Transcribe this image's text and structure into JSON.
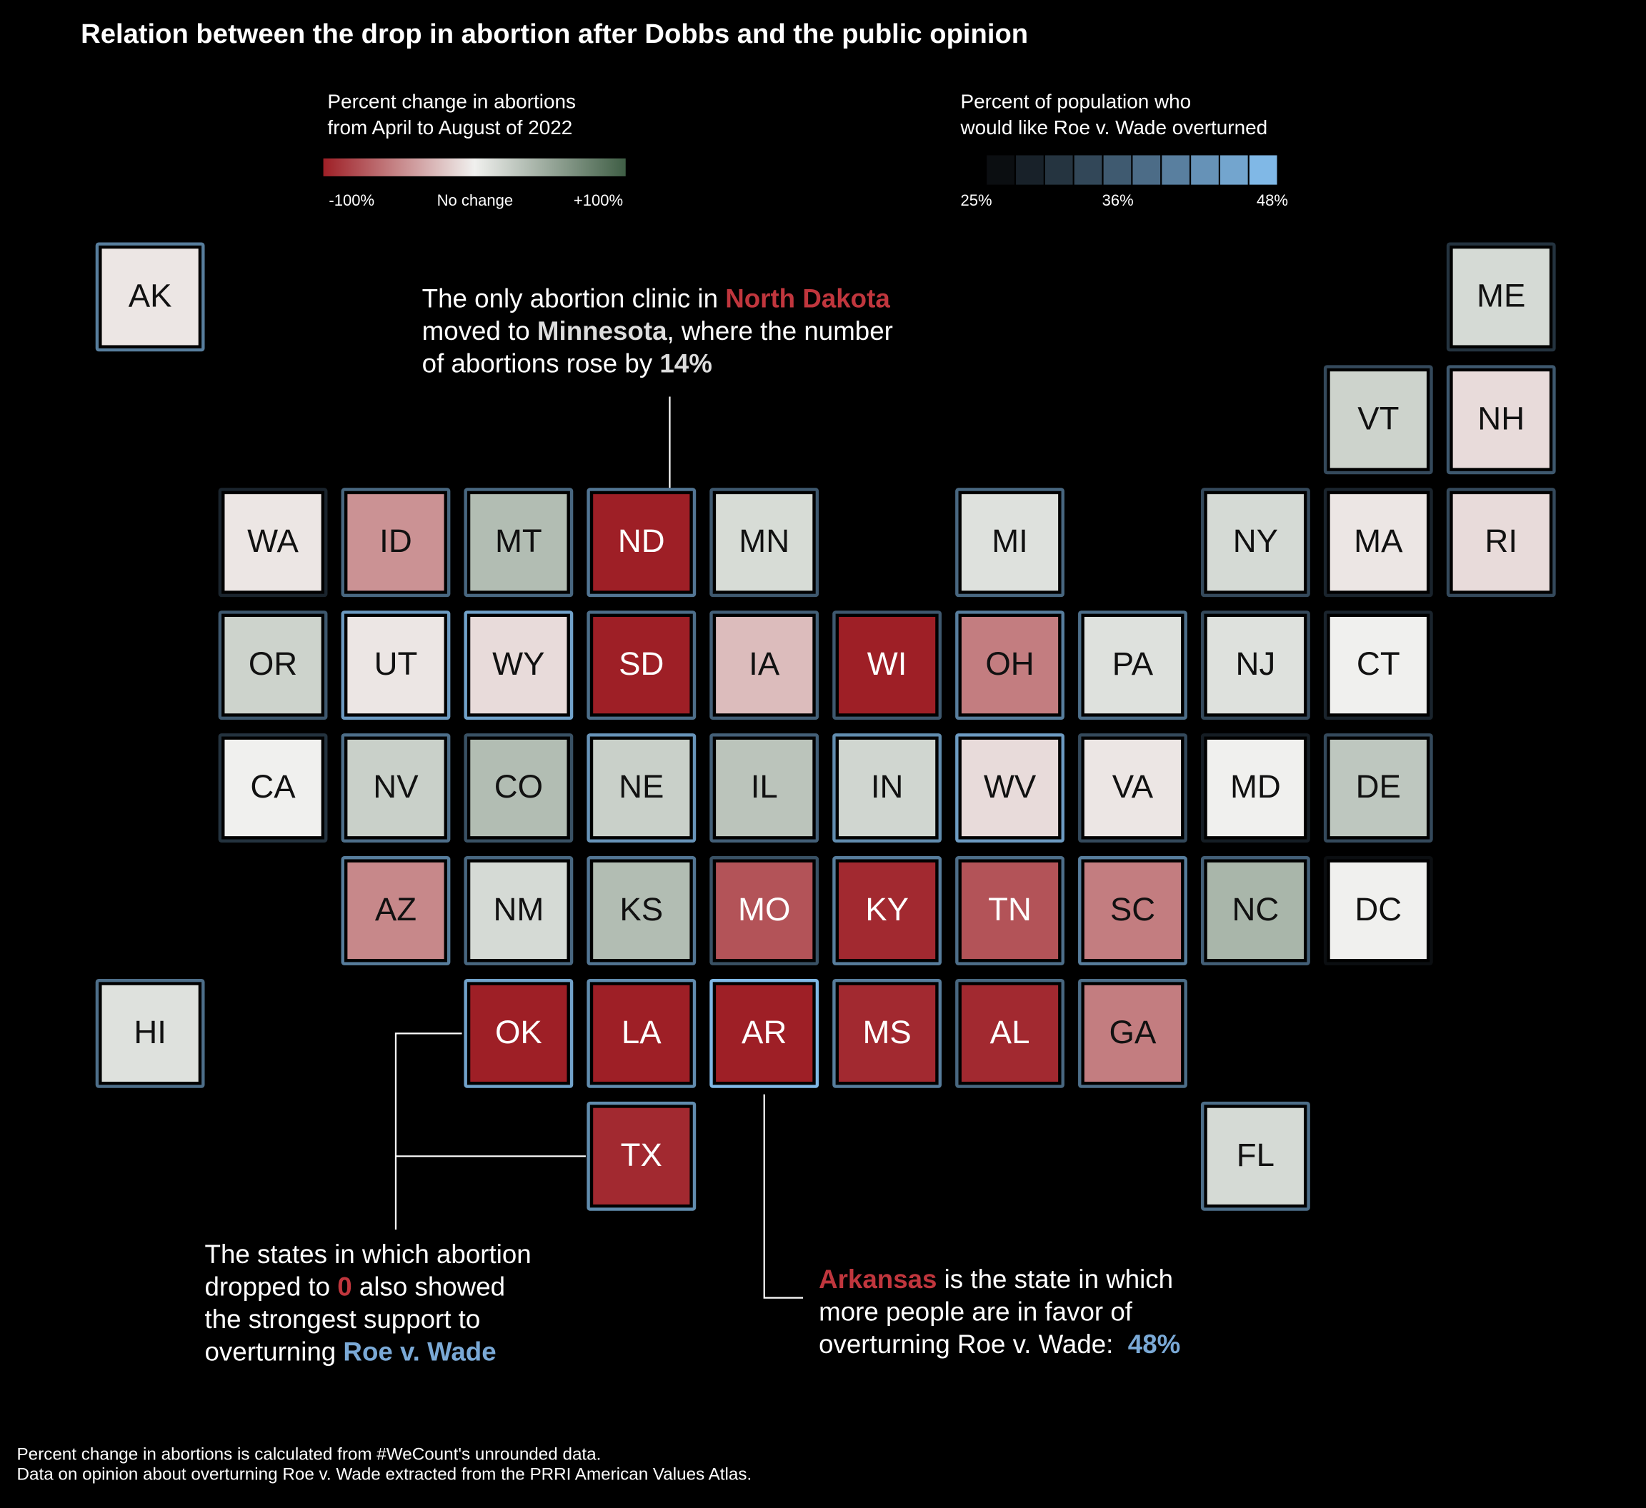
{
  "chart_data": {
    "type": "tilemap",
    "title": "Relation between the drop in abortion after Dobbs and the public opinion",
    "categories": [
      "AK",
      "ME",
      "VT",
      "NH",
      "WA",
      "ID",
      "MT",
      "ND",
      "MN",
      "MI",
      "NY",
      "MA",
      "RI",
      "OR",
      "UT",
      "WY",
      "SD",
      "IA",
      "WI",
      "OH",
      "PA",
      "NJ",
      "CT",
      "CA",
      "NV",
      "CO",
      "NE",
      "IL",
      "IN",
      "WV",
      "VA",
      "MD",
      "DE",
      "AZ",
      "NM",
      "KS",
      "MO",
      "KY",
      "TN",
      "SC",
      "NC",
      "DC",
      "HI",
      "OK",
      "LA",
      "AR",
      "MS",
      "AL",
      "GA",
      "TX",
      "FL"
    ],
    "series": [
      {
        "name_lines": [
          "Percent change in abortions",
          "from April to August of 2022"
        ],
        "colors": [
          "#9e1f26",
          "#f0f0ee",
          "#3f5e45"
        ],
        "lim": [
          -100,
          100
        ],
        "ticks": [
          {
            "value": -100,
            "label": "-100%"
          },
          {
            "value": 0,
            "label": "No change"
          },
          {
            "value": 100,
            "label": "+100%"
          }
        ],
        "values": [
          -5,
          15,
          20,
          -10,
          -5,
          -45,
          35,
          -100,
          14,
          10,
          15,
          -5,
          -10,
          20,
          -5,
          -10,
          -100,
          -25,
          -100,
          -55,
          10,
          10,
          0,
          0,
          22,
          35,
          22,
          30,
          18,
          -10,
          -5,
          0,
          28,
          -50,
          15,
          35,
          -75,
          -95,
          -75,
          -55,
          40,
          0,
          10,
          -100,
          -100,
          -100,
          -95,
          -95,
          -55,
          -95,
          15
        ]
      },
      {
        "name_lines": [
          "Percent of population who",
          "would like Roe v. Wade overturned"
        ],
        "colors": [
          "#0b0e11",
          "#80b8e6"
        ],
        "lim": [
          25,
          48
        ],
        "ticks": [
          {
            "value": 25,
            "label": "25%"
          },
          {
            "value": 36,
            "label": "36%"
          },
          {
            "value": 48,
            "label": "48%"
          }
        ],
        "values": [
          40,
          30,
          33,
          35,
          28,
          37,
          37,
          39,
          35,
          37,
          33,
          28,
          33,
          35,
          44,
          45,
          38,
          36,
          35,
          40,
          38,
          33,
          28,
          30,
          38,
          34,
          43,
          36,
          42,
          44,
          33,
          27,
          33,
          40,
          37,
          39,
          34,
          40,
          38,
          40,
          36,
          25,
          38,
          45,
          42,
          48,
          40,
          37,
          38,
          42,
          38
        ]
      }
    ],
    "emphasis_colors": {
      "red": "#c0363d",
      "blue": "#7aa9d6",
      "bold": "#dcdcdc"
    },
    "annotations": [
      {
        "lines": [
          [
            {
              "text": "The only abortion clinic in "
            },
            {
              "text": "North Dakota",
              "emphasis": "red"
            }
          ],
          [
            {
              "text": "moved to "
            },
            {
              "text": "Minnesota",
              "emphasis": "bold"
            },
            {
              "text": ", where the number"
            }
          ],
          [
            {
              "text": "of abortions rose by "
            },
            {
              "text": "14%",
              "emphasis": "bold"
            }
          ]
        ]
      },
      {
        "lines": [
          [
            {
              "text": "The states in which abortion"
            }
          ],
          [
            {
              "text": "dropped to "
            },
            {
              "text": "0",
              "emphasis": "red"
            },
            {
              "text": " also showed"
            }
          ],
          [
            {
              "text": "the strongest support to"
            }
          ],
          [
            {
              "text": "overturning "
            },
            {
              "text": "Roe v. Wade",
              "emphasis": "blue"
            }
          ]
        ]
      },
      {
        "lines": [
          [
            {
              "text": "Arkansas",
              "emphasis": "red"
            },
            {
              "text": " is the state in which"
            }
          ],
          [
            {
              "text": "more people are in favor of"
            }
          ],
          [
            {
              "text": "overturning Roe v. Wade:  "
            },
            {
              "text": "48%",
              "emphasis": "blue"
            }
          ]
        ]
      }
    ],
    "notes": [
      "Percent change in abortions is calculated from #WeCount's unrounded data.",
      "Data on opinion about overturning Roe v. Wade extracted from the PRRI American Values Atlas."
    ]
  }
}
